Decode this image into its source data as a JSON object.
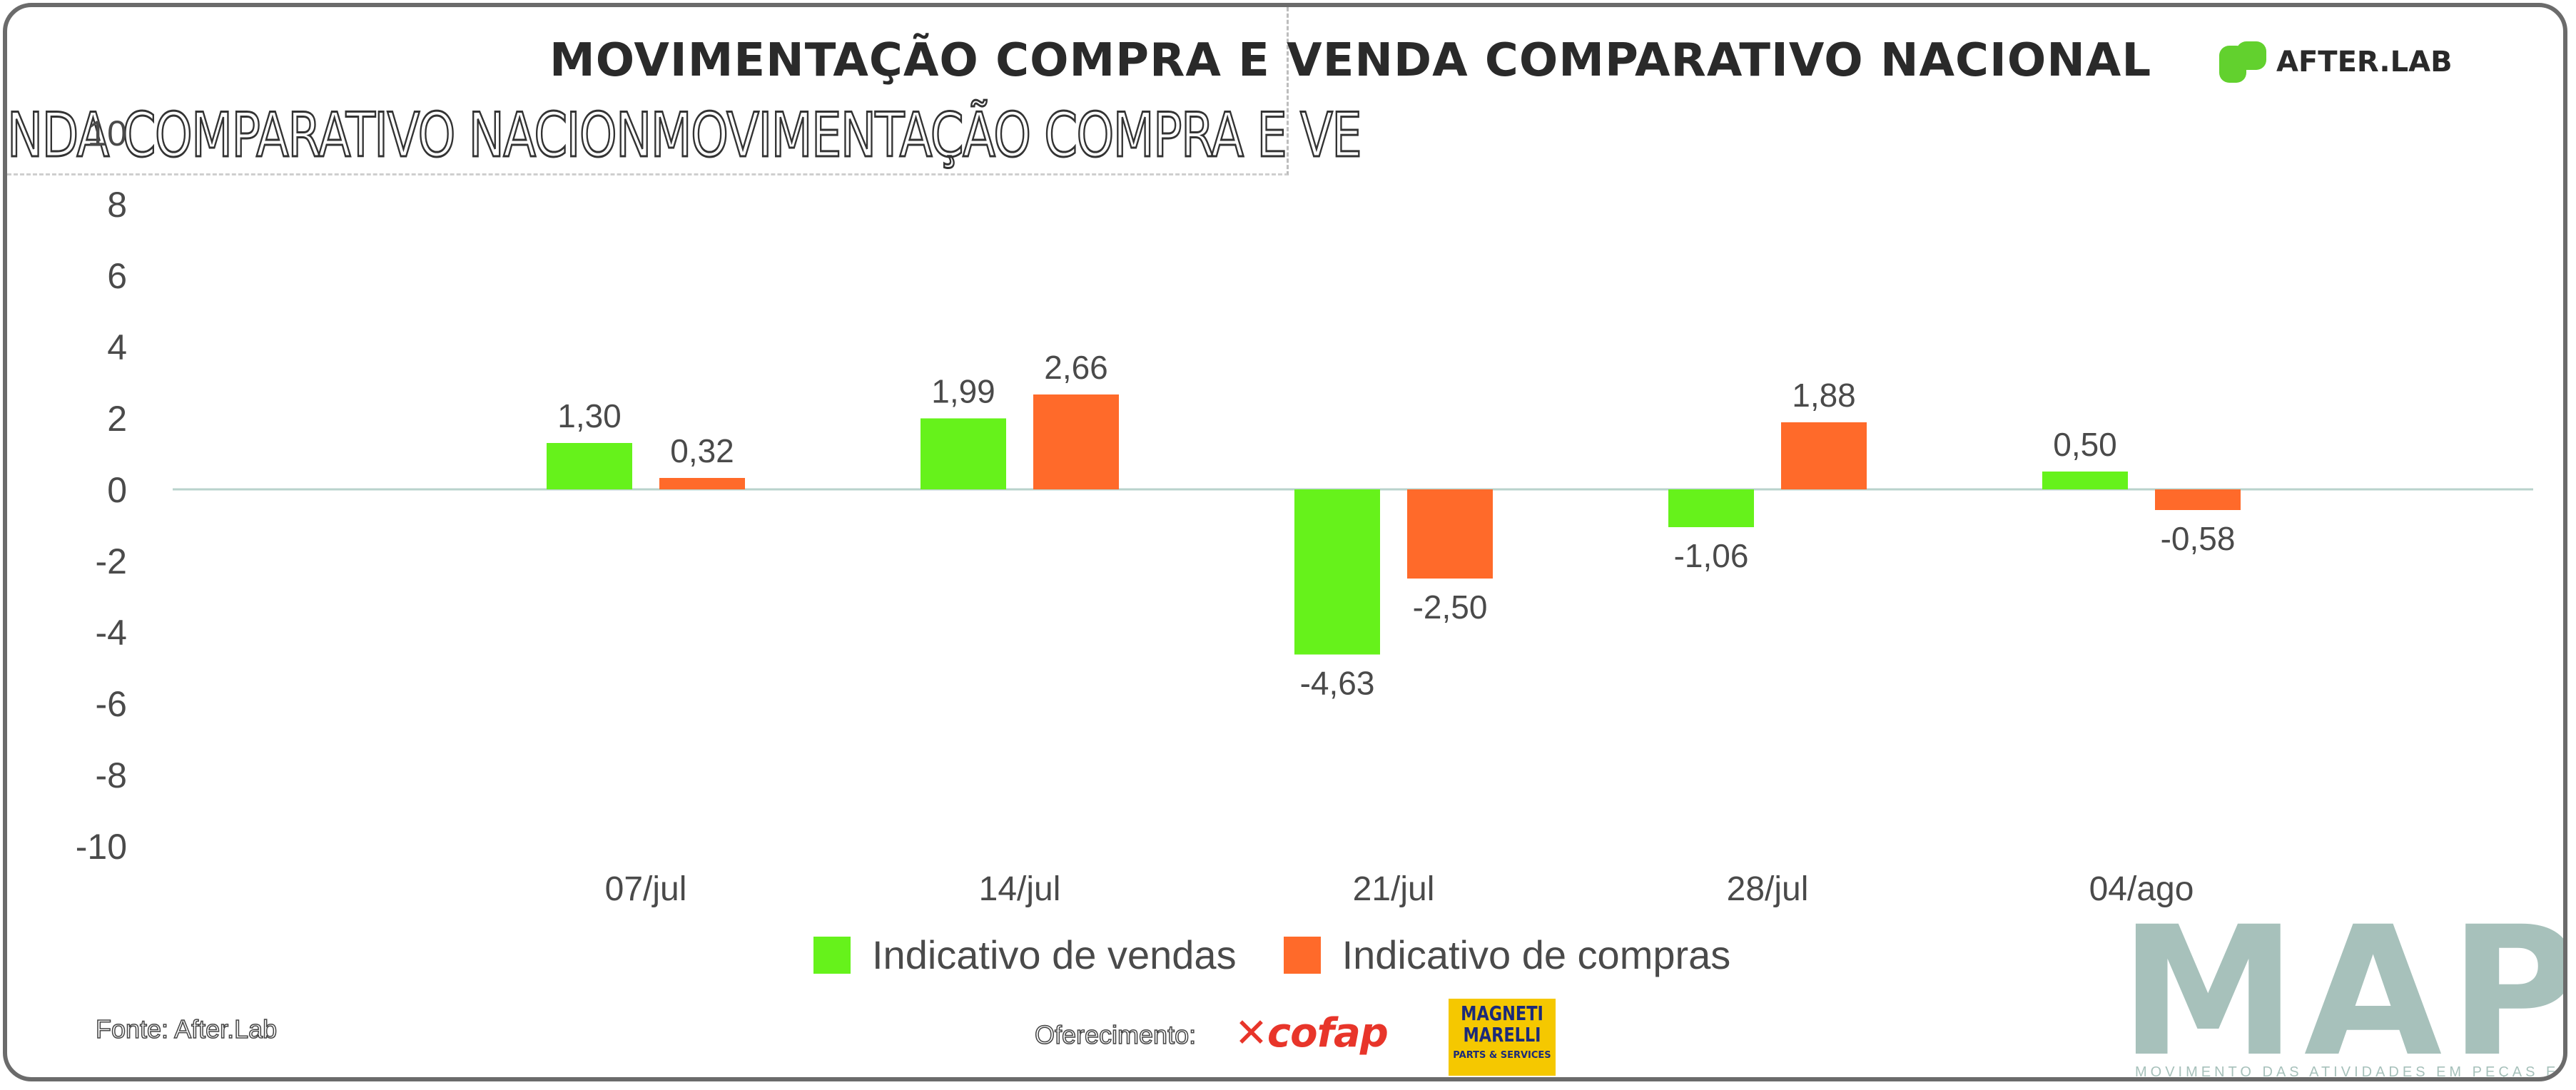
{
  "header": {
    "title": "MOVIMENTAÇÃO COMPRA E VENDA COMPARATIVO NACIONAL",
    "ghost_title": "NDA COMPARATIVO NACIONMOVIMENTAÇÃO COMPRA E VE",
    "brand": "AFTER.LAB"
  },
  "chart_data": {
    "type": "bar",
    "title": "MOVIMENTAÇÃO COMPRA E VENDA COMPARATIVO NACIONAL",
    "categories": [
      "07/jul",
      "14/jul",
      "21/jul",
      "28/jul",
      "04/ago"
    ],
    "series": [
      {
        "name": "Indicativo de vendas",
        "color": "#66f21b",
        "values": [
          1.3,
          1.99,
          -4.63,
          -1.06,
          0.5
        ],
        "labels": [
          "1,30",
          "1,99",
          "-4,63",
          "-1,06",
          "0,50"
        ]
      },
      {
        "name": "Indicativo de compras",
        "color": "#ff6a2a",
        "values": [
          0.32,
          2.66,
          -2.5,
          1.88,
          -0.58
        ],
        "labels": [
          "0,32",
          "2,66",
          "-2,50",
          "1,88",
          "-0,58"
        ]
      }
    ],
    "yticks": [
      "10",
      "8",
      "6",
      "4",
      "2",
      "0",
      "-2",
      "-4",
      "-6",
      "-8",
      "-10"
    ],
    "ylim": [
      -10,
      10
    ],
    "xlabel": "",
    "ylabel": "",
    "legend_position": "bottom"
  },
  "footer": {
    "source": "Fonte: After.Lab",
    "offer": "Oferecimento:",
    "sponsor1": "cofap",
    "sponsor2_line1": "MAGNETI",
    "sponsor2_line2": "MARELLI",
    "sponsor2_line3": "PARTS & SERVICES",
    "mapa": "MAPA",
    "mapa_sub": "MOVIMENTO DAS ATIVIDADES EM PEÇAS E ACESSÓRIOS"
  },
  "colors": {
    "sales": "#66f21b",
    "purchases": "#ff6a2a",
    "zero_line": "#b9d3cc",
    "mapa": "#a7c1bb"
  }
}
